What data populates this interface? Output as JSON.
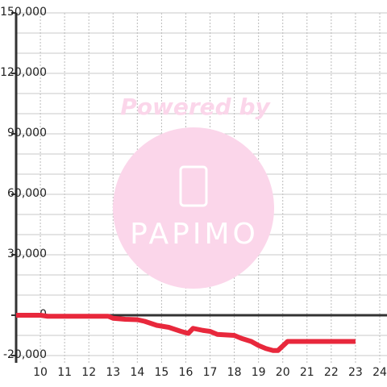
{
  "chart_data": {
    "type": "line",
    "watermark": {
      "text": "Powered by",
      "logo": "PAPIMO"
    },
    "series": [
      {
        "color": "#e8283c",
        "x": [
          9,
          10,
          10.3,
          12.8,
          13,
          13.5,
          14,
          14.3,
          14.8,
          15.3,
          15.8,
          16.1,
          16.3,
          16.7,
          17,
          17.3,
          18,
          18.3,
          18.7,
          19,
          19.3,
          19.6,
          19.8,
          20.2,
          21,
          23
        ],
        "values": [
          0,
          0,
          -500,
          -500,
          -1500,
          -2000,
          -2200,
          -3000,
          -5000,
          -6000,
          -8000,
          -9000,
          -6500,
          -7500,
          -8000,
          -9500,
          -10000,
          -11500,
          -13000,
          -15000,
          -16500,
          -17500,
          -17500,
          -13000,
          -13000,
          -13000
        ]
      }
    ],
    "xlim": [
      9,
      24.3
    ],
    "xticks": [
      10,
      11,
      12,
      13,
      14,
      15,
      16,
      17,
      18,
      19,
      20,
      21,
      22,
      23,
      24
    ],
    "ylim": [
      -20000,
      150000
    ],
    "yticks": [
      {
        "value": -20000,
        "label": "-20,000"
      },
      0,
      {
        "value": 30000,
        "label": "30,000"
      },
      {
        "value": 60000,
        "label": "60,000"
      },
      {
        "value": 90000,
        "label": "90,000"
      },
      {
        "value": 120000,
        "label": "120,000"
      },
      {
        "value": 150000,
        "label": "150,000"
      }
    ],
    "y_minor_ticks": [
      -10000,
      10000,
      20000,
      40000,
      50000,
      70000,
      80000,
      100000,
      110000,
      130000,
      140000
    ],
    "grid": true
  }
}
